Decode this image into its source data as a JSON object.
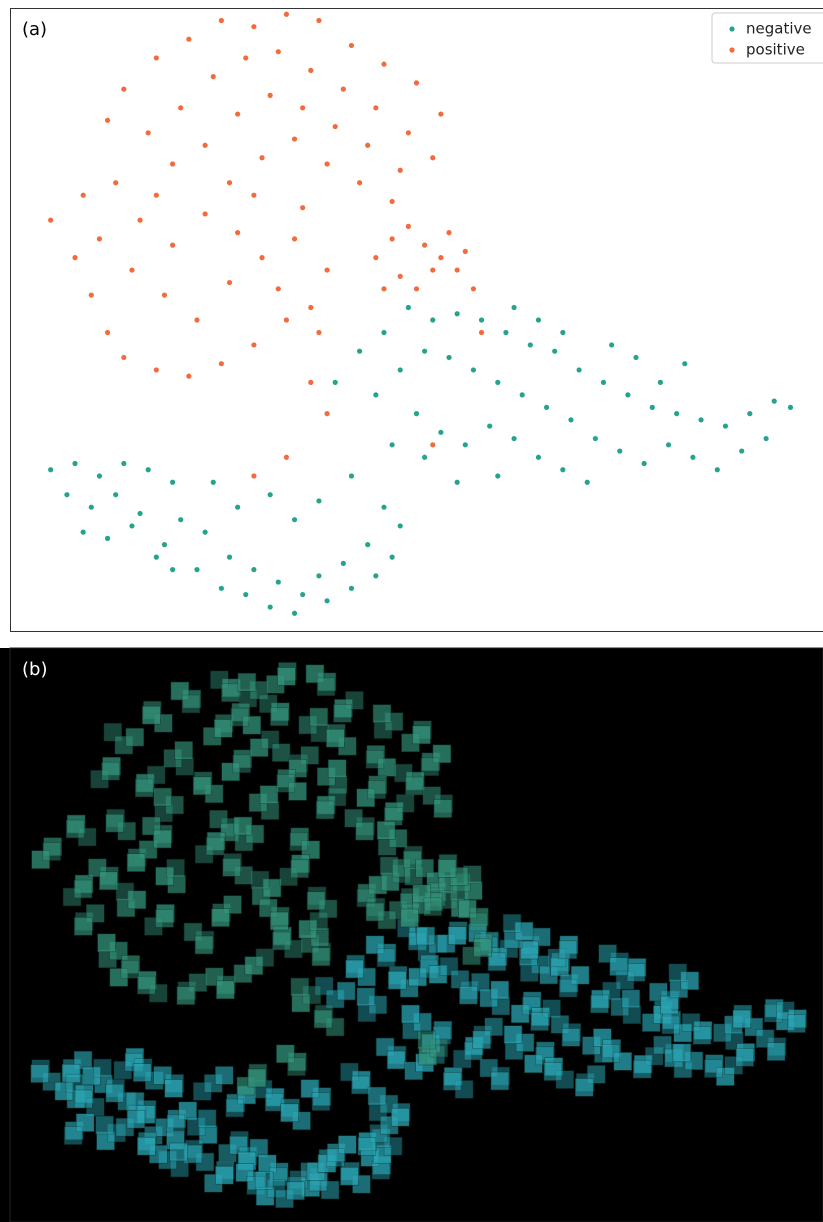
{
  "chart_data": [
    {
      "type": "scatter",
      "label": "(a)",
      "legend": "upper right",
      "xlim": [
        0,
        100
      ],
      "ylim": [
        0,
        100
      ],
      "series": [
        {
          "name": "negative",
          "color": "#26a38c",
          "x": [
            40,
            43,
            46,
            49,
            52,
            55,
            58,
            61,
            64,
            67,
            70,
            73,
            76,
            79,
            82,
            85,
            88,
            91,
            94,
            96,
            45,
            48,
            51,
            54,
            57,
            60,
            63,
            66,
            69,
            72,
            75,
            78,
            81,
            84,
            87,
            90,
            93,
            50,
            53,
            56,
            59,
            62,
            65,
            68,
            71,
            47,
            51,
            55,
            60,
            80,
            83,
            77,
            74,
            65,
            62,
            68,
            5,
            8,
            11,
            14,
            17,
            20,
            7,
            10,
            13,
            16,
            9,
            12,
            15,
            19,
            21,
            24,
            27,
            30,
            33,
            36,
            39,
            42,
            45,
            47,
            23,
            26,
            29,
            32,
            35,
            38,
            41,
            44,
            20,
            18,
            28,
            32,
            25,
            35,
            38,
            42,
            46,
            48
          ],
          "values": [
            40,
            45,
            48,
            52,
            50,
            51,
            50,
            48,
            46,
            45,
            42,
            40,
            38,
            36,
            35,
            34,
            33,
            35,
            37,
            36,
            38,
            42,
            45,
            44,
            42,
            40,
            38,
            36,
            34,
            31,
            29,
            27,
            30,
            28,
            26,
            29,
            31,
            35,
            32,
            30,
            33,
            31,
            28,
            26,
            24,
            30,
            28,
            24,
            25,
            40,
            43,
            44,
            46,
            50,
            52,
            48,
            26,
            27,
            25,
            27,
            26,
            24,
            22,
            20,
            22,
            19,
            16,
            15,
            17,
            14,
            18,
            16,
            12,
            10,
            8,
            6,
            5,
            7,
            9,
            12,
            10,
            7,
            6,
            4,
            3,
            9,
            11,
            14,
            10,
            12,
            20,
            22,
            24,
            18,
            21,
            25,
            20,
            17
          ]
        },
        {
          "name": "positive",
          "color": "#f36a3c",
          "x": [
            14,
            18,
            22,
            26,
            30,
            34,
            38,
            42,
            46,
            50,
            53,
            17,
            21,
            25,
            29,
            33,
            37,
            41,
            45,
            49,
            20,
            24,
            28,
            32,
            36,
            40,
            44,
            48,
            27,
            31,
            35,
            39,
            43,
            30,
            36,
            12,
            52,
            47,
            5,
            8,
            10,
            12,
            14,
            18,
            22,
            26,
            30,
            34,
            38,
            11,
            15,
            19,
            23,
            27,
            31,
            35,
            39,
            16,
            20,
            24,
            28,
            33,
            37,
            9,
            13,
            18,
            45,
            47,
            49,
            51,
            53,
            55,
            48,
            50,
            52,
            56,
            46,
            54,
            57,
            37,
            39,
            30,
            34,
            52,
            58
          ],
          "values": [
            87,
            92,
            95,
            98,
            97,
            99,
            98,
            94,
            91,
            88,
            83,
            80,
            84,
            89,
            92,
            93,
            90,
            87,
            84,
            80,
            75,
            78,
            83,
            86,
            84,
            81,
            78,
            74,
            72,
            76,
            79,
            75,
            72,
            70,
            68,
            82,
            76,
            69,
            66,
            60,
            54,
            48,
            44,
            42,
            41,
            43,
            46,
            50,
            48,
            63,
            58,
            54,
            50,
            56,
            60,
            63,
            58,
            66,
            62,
            67,
            64,
            55,
            52,
            70,
            72,
            70,
            60,
            63,
            65,
            62,
            60,
            58,
            57,
            55,
            58,
            61,
            55,
            64,
            55,
            40,
            35,
            25,
            28,
            30,
            48
          ]
        }
      ]
    },
    {
      "type": "mosaic",
      "label": "(b)",
      "colors": [
        "#2ba6b5",
        "#35957c"
      ]
    }
  ]
}
